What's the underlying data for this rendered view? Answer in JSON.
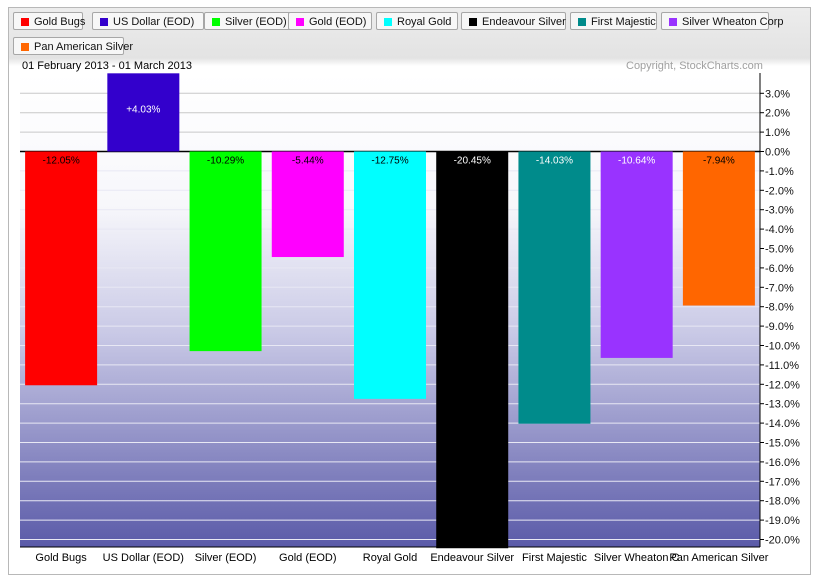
{
  "legend": [
    {
      "label": "Gold Bugs",
      "color": "#ff0000"
    },
    {
      "label": "US Dollar (EOD)",
      "color": "#3300cc"
    },
    {
      "label": "Silver (EOD)",
      "color": "#00ff00"
    },
    {
      "label": "Gold (EOD)",
      "color": "#ff00ff"
    },
    {
      "label": "Royal Gold",
      "color": "#00ffff"
    },
    {
      "label": "Endeavour Silver",
      "color": "#000000"
    },
    {
      "label": "First Majestic",
      "color": "#008b8b"
    },
    {
      "label": "Silver Wheaton Corp",
      "color": "#9933ff"
    },
    {
      "label": "Pan American Silver",
      "color": "#ff6600"
    }
  ],
  "header": {
    "date_range": "01 February 2013 - 01 March 2013",
    "copyright": "Copyright, StockCharts.com"
  },
  "chart_data": {
    "type": "bar",
    "categories": [
      "Gold Bugs",
      "US Dollar (EOD)",
      "Silver (EOD)",
      "Gold (EOD)",
      "Royal Gold",
      "Endeavour Silver",
      "First Majestic",
      "Silver Wheaton C",
      "Pan American Silver"
    ],
    "values": [
      -12.05,
      4.03,
      -10.29,
      -5.44,
      -12.75,
      -20.45,
      -14.03,
      -10.64,
      -7.94
    ],
    "data_labels": [
      "-12.05%",
      "+4.03%",
      "-10.29%",
      "-5.44%",
      "-12.75%",
      "-20.45%",
      "-14.03%",
      "-10.64%",
      "-7.94%"
    ],
    "colors": [
      "#ff0000",
      "#3300cc",
      "#00ff00",
      "#ff00ff",
      "#00ffff",
      "#000000",
      "#008b8b",
      "#9933ff",
      "#ff6600"
    ],
    "label_colors": [
      "#000000",
      "#ffffff",
      "#000000",
      "#000000",
      "#000000",
      "#ffffff",
      "#ffffff",
      "#ffffff",
      "#000000"
    ],
    "ylim": [
      -20.5,
      4.03
    ],
    "yticks": [
      3,
      2,
      1,
      0,
      -1,
      -2,
      -3,
      -4,
      -5,
      -6,
      -7,
      -8,
      -9,
      -10,
      -11,
      -12,
      -13,
      -14,
      -15,
      -16,
      -17,
      -18,
      -19,
      -20
    ],
    "ytick_labels": [
      "3.0%",
      "2.0%",
      "1.0%",
      "0.0%",
      "-1.0%",
      "-2.0%",
      "-3.0%",
      "-4.0%",
      "-5.0%",
      "-6.0%",
      "-7.0%",
      "-8.0%",
      "-9.0%",
      "-10.0%",
      "-11.0%",
      "-12.0%",
      "-13.0%",
      "-14.0%",
      "-15.0%",
      "-16.0%",
      "-17.0%",
      "-18.0%",
      "-19.0%",
      "-20.0%"
    ],
    "grid": true,
    "legend_position": "top"
  }
}
